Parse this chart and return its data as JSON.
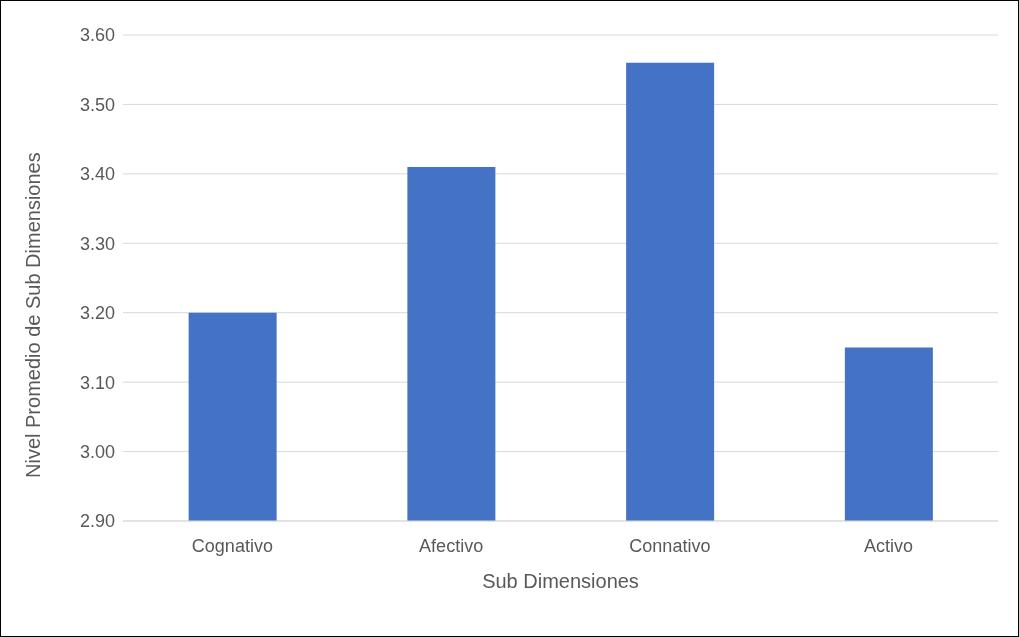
{
  "chart_data": {
    "type": "bar",
    "xlabel": "Sub Dimensiones",
    "ylabel": "Nivel Promedio de Sub Dimensiones",
    "categories": [
      "Cognativo",
      "Afectivo",
      "Connativo",
      "Activo"
    ],
    "values": [
      3.2,
      3.41,
      3.56,
      3.15
    ],
    "color": "#4472c4",
    "ylim": [
      2.9,
      3.6
    ],
    "yticks": [
      {
        "value": 2.9,
        "label": "2.90"
      },
      {
        "value": 3.0,
        "label": "3.00"
      },
      {
        "value": 3.1,
        "label": "3.10"
      },
      {
        "value": 3.2,
        "label": "3.20"
      },
      {
        "value": 3.3,
        "label": "3.30"
      },
      {
        "value": 3.4,
        "label": "3.40"
      },
      {
        "value": 3.5,
        "label": "3.50"
      },
      {
        "value": 3.6,
        "label": "3.60"
      }
    ],
    "grid": "y",
    "legend": false
  }
}
